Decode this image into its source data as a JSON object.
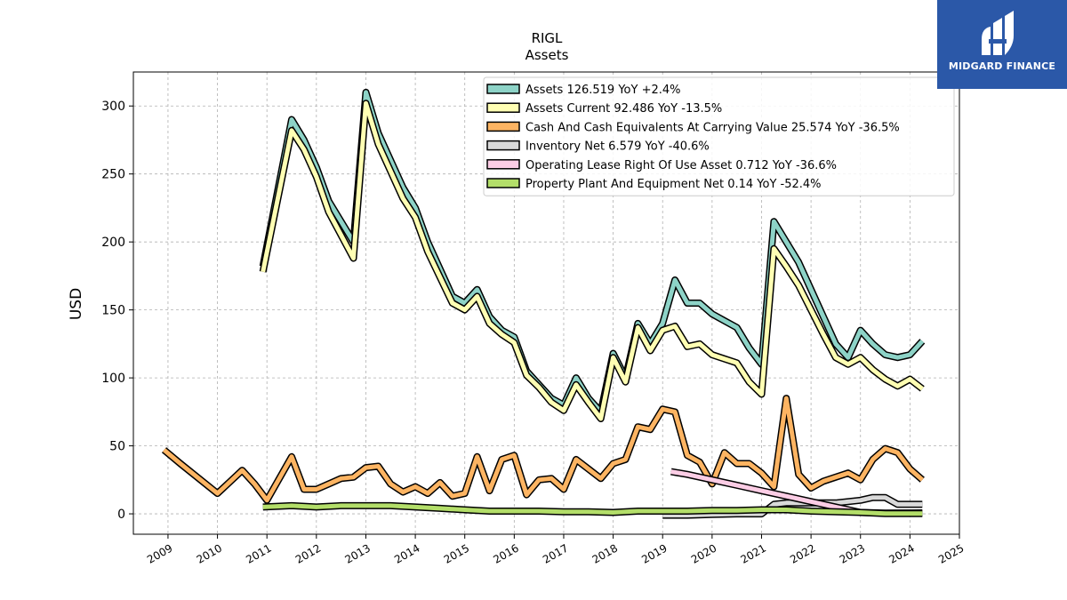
{
  "brand": {
    "name": "MIDGARD FINANCE",
    "bg_color": "#2b58a8"
  },
  "chart_data": {
    "type": "line",
    "title": "RIGL",
    "subtitle": "Assets",
    "ylabel": "USD",
    "xlabel": "",
    "xlim": [
      2008.3,
      2025.0
    ],
    "ylim": [
      -15,
      325
    ],
    "yticks": [
      0,
      50,
      100,
      150,
      200,
      250,
      300
    ],
    "xticks": [
      "2009",
      "2010",
      "2011",
      "2012",
      "2013",
      "2014",
      "2015",
      "2016",
      "2017",
      "2018",
      "2019",
      "2020",
      "2021",
      "2022",
      "2023",
      "2024",
      "2025"
    ],
    "grid": true,
    "legend_position": "top-right",
    "series": [
      {
        "name": "Assets",
        "legend_label": "Assets  126.519 YoY +2.4%",
        "color": "#8dd3c7",
        "x": [
          2010.92,
          2011.5,
          2011.75,
          2012.0,
          2012.25,
          2012.75,
          2013.0,
          2013.25,
          2013.75,
          2014.0,
          2014.25,
          2014.75,
          2015.0,
          2015.25,
          2015.5,
          2015.75,
          2016.0,
          2016.25,
          2016.5,
          2016.75,
          2017.0,
          2017.25,
          2017.5,
          2017.75,
          2018.0,
          2018.25,
          2018.5,
          2018.75,
          2019.0,
          2019.25,
          2019.5,
          2019.75,
          2020.0,
          2020.25,
          2020.5,
          2020.75,
          2021.0,
          2021.25,
          2021.5,
          2021.75,
          2022.0,
          2022.25,
          2022.5,
          2022.75,
          2023.0,
          2023.25,
          2023.5,
          2023.75,
          2024.0,
          2024.25
        ],
        "y": [
          182,
          290,
          275,
          255,
          230,
          200,
          310,
          280,
          240,
          225,
          200,
          160,
          155,
          165,
          145,
          135,
          130,
          105,
          95,
          85,
          80,
          100,
          85,
          75,
          118,
          100,
          140,
          125,
          140,
          172,
          155,
          155,
          147,
          142,
          137,
          122,
          110,
          215,
          200,
          185,
          165,
          145,
          125,
          115,
          135,
          125,
          117,
          115,
          117,
          127
        ]
      },
      {
        "name": "Assets Current",
        "legend_label": "Assets Current  92.486 YoY -13.5%",
        "color": "#ffffb3",
        "x": [
          2010.92,
          2011.5,
          2011.75,
          2012.0,
          2012.25,
          2012.75,
          2013.0,
          2013.25,
          2013.75,
          2014.0,
          2014.25,
          2014.75,
          2015.0,
          2015.25,
          2015.5,
          2015.75,
          2016.0,
          2016.25,
          2016.5,
          2016.75,
          2017.0,
          2017.25,
          2017.5,
          2017.75,
          2018.0,
          2018.25,
          2018.5,
          2018.75,
          2019.0,
          2019.25,
          2019.5,
          2019.75,
          2020.0,
          2020.25,
          2020.5,
          2020.75,
          2021.0,
          2021.25,
          2021.5,
          2021.75,
          2022.0,
          2022.25,
          2022.5,
          2022.75,
          2023.0,
          2023.25,
          2023.5,
          2023.75,
          2024.0,
          2024.25
        ],
        "y": [
          178,
          282,
          268,
          248,
          222,
          188,
          302,
          272,
          232,
          218,
          193,
          155,
          150,
          160,
          140,
          132,
          126,
          102,
          93,
          82,
          76,
          95,
          82,
          70,
          115,
          97,
          137,
          120,
          135,
          138,
          123,
          125,
          117,
          114,
          111,
          97,
          88,
          195,
          182,
          168,
          150,
          132,
          115,
          110,
          115,
          106,
          99,
          94,
          99,
          92
        ]
      },
      {
        "name": "Cash And Cash Equivalents At Carrying Value",
        "legend_label": "Cash And Cash Equivalents At Carrying Value  25.574 YoY -36.5%",
        "color": "#fdb462",
        "x": [
          2008.92,
          2009.25,
          2010.0,
          2010.5,
          2010.75,
          2011.0,
          2011.5,
          2011.75,
          2012.0,
          2012.25,
          2012.5,
          2012.75,
          2013.0,
          2013.25,
          2013.5,
          2013.75,
          2014.0,
          2014.25,
          2014.5,
          2014.75,
          2015.0,
          2015.25,
          2015.5,
          2015.75,
          2016.0,
          2016.25,
          2016.5,
          2016.75,
          2017.0,
          2017.25,
          2017.5,
          2017.75,
          2018.0,
          2018.25,
          2018.5,
          2018.75,
          2019.0,
          2019.25,
          2019.5,
          2019.75,
          2020.0,
          2020.25,
          2020.5,
          2020.75,
          2021.0,
          2021.25,
          2021.5,
          2021.75,
          2022.0,
          2022.25,
          2022.5,
          2022.75,
          2023.0,
          2023.25,
          2023.5,
          2023.75,
          2024.0,
          2024.25
        ],
        "y": [
          47,
          37,
          15,
          32,
          22,
          10,
          42,
          18,
          18,
          22,
          26,
          27,
          34,
          35,
          22,
          16,
          20,
          15,
          23,
          13,
          15,
          42,
          17,
          40,
          43,
          14,
          25,
          26,
          18,
          40,
          33,
          26,
          37,
          40,
          64,
          62,
          77,
          75,
          43,
          38,
          22,
          45,
          37,
          37,
          30,
          20,
          85,
          29,
          19,
          24,
          27,
          30,
          25,
          40,
          48,
          45,
          33,
          25
        ]
      },
      {
        "name": "Inventory Net",
        "legend_label": "Inventory Net  6.579 YoY -40.6%",
        "color": "#d9d9d9",
        "x": [
          2019.0,
          2019.5,
          2020.0,
          2020.5,
          2021.0,
          2021.25,
          2021.5,
          2022.0,
          2022.5,
          2023.0,
          2023.25,
          2023.5,
          2023.75,
          2024.0,
          2024.25
        ],
        "y": [
          -1,
          -1,
          -0.5,
          0,
          0,
          7,
          8,
          8,
          8,
          10,
          12,
          12,
          7,
          7,
          7
        ]
      },
      {
        "name": "Operating Lease Right Of Use Asset",
        "legend_label": "Operating Lease Right Of Use Asset  0.712 YoY -36.6%",
        "color": "#fccde5",
        "x": [
          2019.17,
          2019.5,
          2020.0,
          2020.5,
          2021.0,
          2021.5,
          2022.0,
          2022.5,
          2023.0,
          2023.5,
          2024.0,
          2024.25
        ],
        "y": [
          31,
          29,
          25,
          21,
          17,
          13,
          9,
          5,
          1,
          0.5,
          0.6,
          0.7
        ]
      },
      {
        "name": "Property Plant And Equipment Net",
        "legend_label": "Property Plant And Equipment Net  0.14 YoY -52.4%",
        "color": "#b3de69",
        "x": [
          2010.92,
          2011.5,
          2012.0,
          2012.5,
          2013.0,
          2013.5,
          2014.0,
          2014.5,
          2015.0,
          2015.5,
          2016.0,
          2016.5,
          2017.0,
          2017.5,
          2018.0,
          2018.5,
          2019.0,
          2019.5,
          2020.0,
          2020.5,
          2021.0,
          2021.5,
          2022.0,
          2022.5,
          2023.0,
          2023.5,
          2024.0,
          2024.25
        ],
        "y": [
          5,
          6,
          5,
          6,
          6,
          6,
          5,
          4,
          3,
          2,
          2,
          2,
          1.5,
          1.5,
          1,
          2,
          2,
          2,
          2.5,
          2.5,
          3,
          3,
          2,
          1.5,
          1,
          0.2,
          0.2,
          0.14
        ]
      }
    ]
  }
}
